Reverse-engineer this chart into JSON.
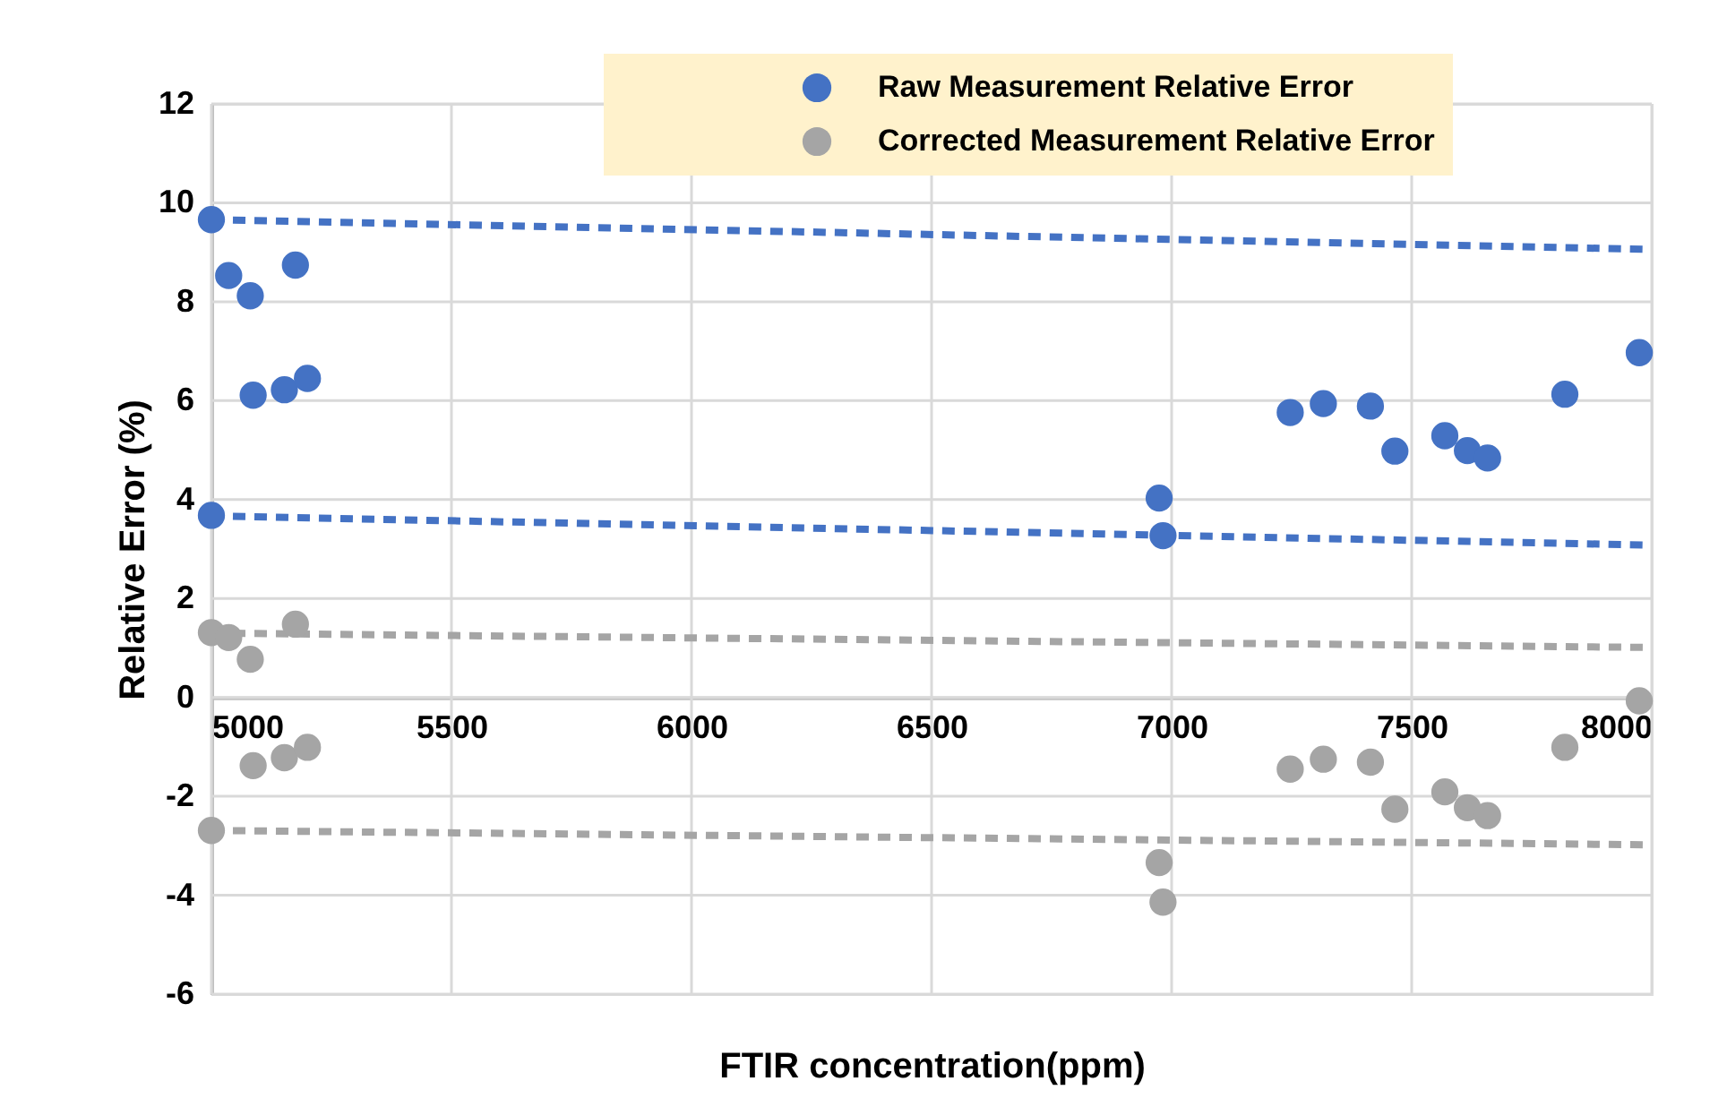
{
  "chart_data": {
    "type": "scatter",
    "xlabel": "FTIR concentration(ppm)",
    "ylabel": "Relative Error (%)",
    "xlim": [
      5000,
      8000
    ],
    "xticks": [
      5000,
      5500,
      6000,
      6500,
      7000,
      7500,
      8000
    ],
    "ylim": [
      -6,
      12
    ],
    "yticks": [
      -6,
      -4,
      -2,
      0,
      2,
      4,
      6,
      8,
      10,
      12
    ],
    "grid": true,
    "legend": "top right",
    "series": [
      {
        "name": "Raw Measurement Relative Error",
        "marker": "circle",
        "color": "#4472c4",
        "x": [
          5000,
          5036,
          5081,
          5175,
          5087,
          5152,
          5200,
          5000,
          6974,
          6982,
          7247,
          7316,
          7414,
          7465,
          7569,
          7616,
          7658,
          7819,
          7974
        ],
        "values": [
          9.66,
          8.53,
          8.12,
          8.74,
          6.11,
          6.22,
          6.45,
          3.68,
          4.03,
          3.27,
          5.76,
          5.94,
          5.89,
          4.98,
          5.29,
          4.99,
          4.84,
          6.13,
          6.97
        ]
      },
      {
        "name": "Corrected Measurement Relative Error",
        "marker": "circle",
        "color": "#a5a5a5",
        "x": [
          5000,
          5036,
          5081,
          5175,
          5087,
          5152,
          5200,
          5000,
          6974,
          6982,
          7247,
          7316,
          7414,
          7465,
          7569,
          7616,
          7658,
          7819,
          7974
        ],
        "values": [
          1.31,
          1.21,
          0.77,
          1.48,
          -1.38,
          -1.22,
          -1.01,
          -2.69,
          -3.34,
          -4.14,
          -1.45,
          -1.25,
          -1.31,
          -2.26,
          -1.91,
          -2.23,
          -2.39,
          -1.01,
          -0.07
        ]
      },
      {
        "type": "line",
        "line_style": "dashed",
        "color": "#4472c4",
        "x": [
          5000,
          7988
        ],
        "values": [
          9.66,
          9.06
        ]
      },
      {
        "type": "line",
        "line_style": "dashed",
        "color": "#4472c4",
        "x": [
          5000,
          7988
        ],
        "values": [
          3.67,
          3.08
        ]
      },
      {
        "type": "line",
        "line_style": "dashed",
        "color": "#a5a5a5",
        "x": [
          5000,
          7988
        ],
        "values": [
          1.3,
          1.01
        ]
      },
      {
        "type": "line",
        "line_style": "dashed",
        "color": "#a5a5a5",
        "x": [
          5000,
          7988
        ],
        "values": [
          -2.69,
          -2.98
        ]
      }
    ]
  }
}
